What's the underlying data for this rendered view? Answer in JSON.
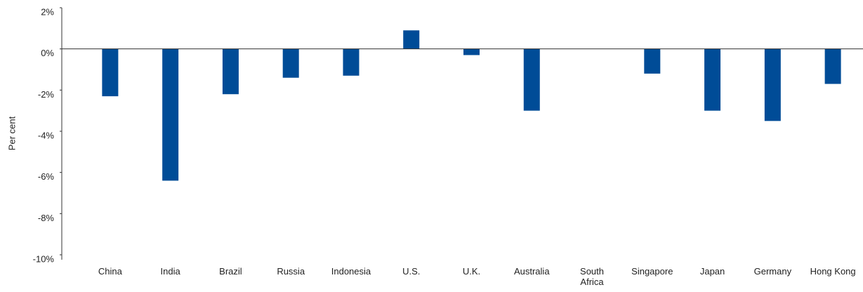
{
  "chart_data": {
    "type": "bar",
    "y_axis_label": "Per cent",
    "categories": [
      "China",
      "India",
      "Brazil",
      "Russia",
      "Indonesia",
      "U.S.",
      "U.K.",
      "Australia",
      "South Africa",
      "Singapore",
      "Japan",
      "Germany",
      "Hong Kong"
    ],
    "values": [
      -2.3,
      -6.4,
      -2.2,
      -1.4,
      -1.3,
      0.9,
      -0.3,
      -3.0,
      0,
      -1.2,
      -3.0,
      -3.5,
      -1.7
    ],
    "color": "#004c97",
    "ylim": [
      -10,
      2
    ],
    "yticks": [
      {
        "value": 2,
        "label": "2%"
      },
      {
        "value": 0,
        "label": "0%"
      },
      {
        "value": -2,
        "label": "-2%"
      },
      {
        "value": -4,
        "label": "-4%"
      },
      {
        "value": -6,
        "label": "-6%"
      },
      {
        "value": -8,
        "label": "-8%"
      },
      {
        "value": -10,
        "label": "-10%"
      }
    ],
    "grid": false
  }
}
